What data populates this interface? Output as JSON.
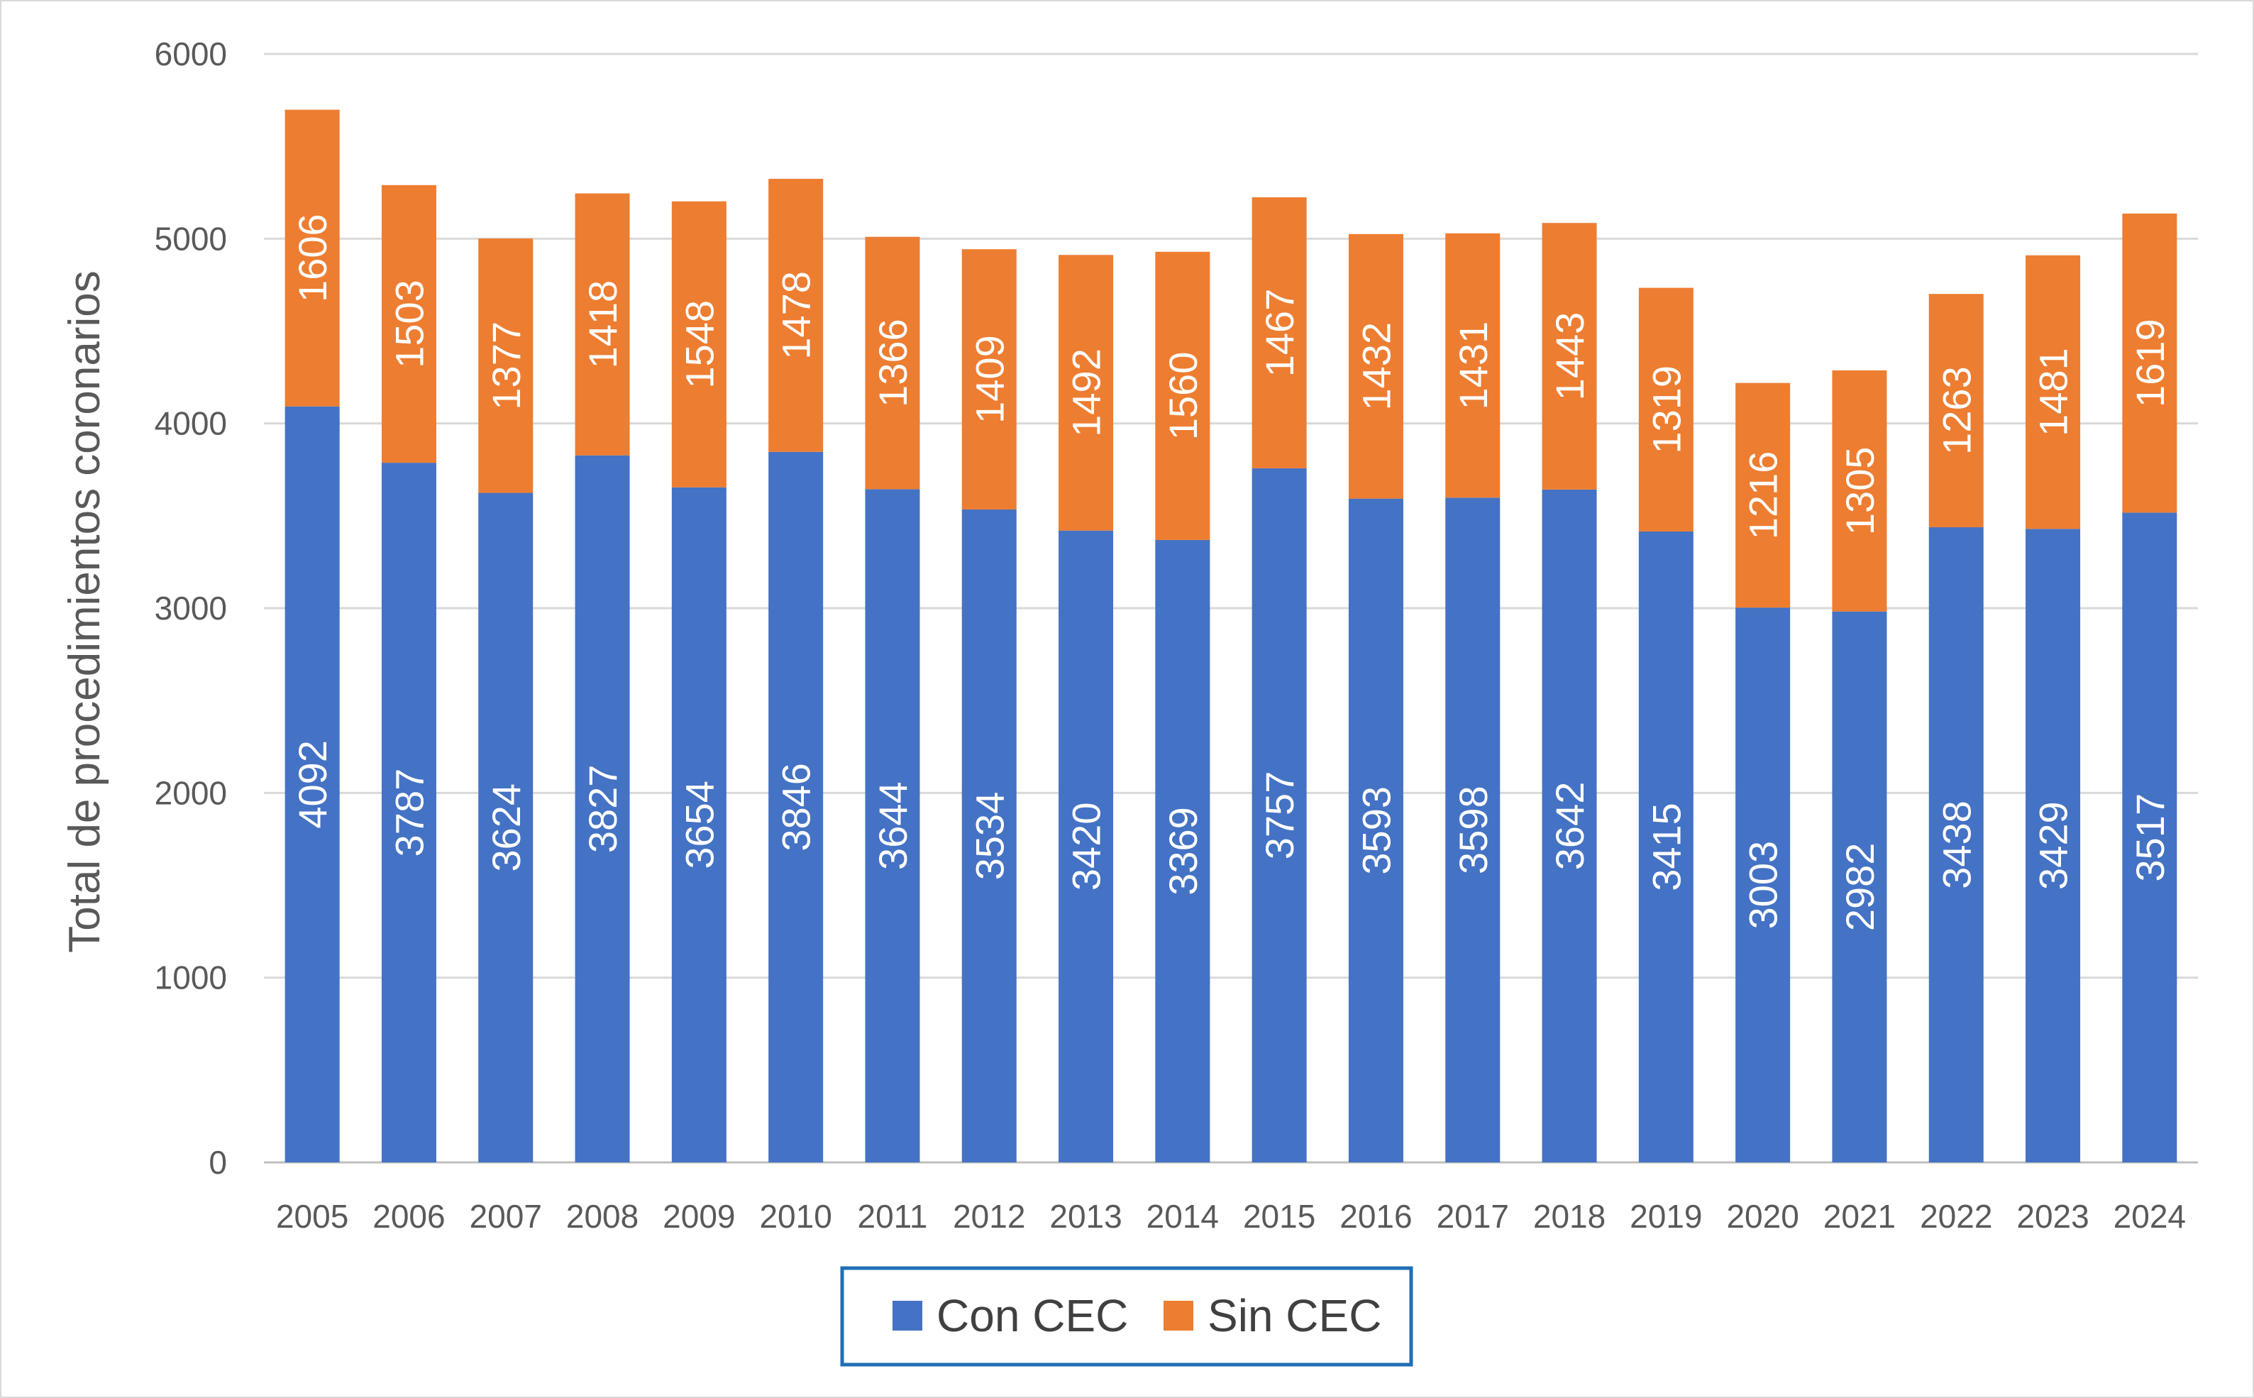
{
  "chart_data": {
    "type": "bar",
    "stacked": true,
    "categories": [
      "2005",
      "2006",
      "2007",
      "2008",
      "2009",
      "2010",
      "2011",
      "2012",
      "2013",
      "2014",
      "2015",
      "2016",
      "2017",
      "2018",
      "2019",
      "2020",
      "2021",
      "2022",
      "2023",
      "2024"
    ],
    "series": [
      {
        "name": "Con CEC",
        "color": "#4472C4",
        "values": [
          4092,
          3787,
          3624,
          3827,
          3654,
          3846,
          3644,
          3534,
          3420,
          3369,
          3757,
          3593,
          3598,
          3642,
          3415,
          3003,
          2982,
          3438,
          3429,
          3517
        ]
      },
      {
        "name": "Sin CEC",
        "color": "#ED7D31",
        "values": [
          1606,
          1503,
          1377,
          1418,
          1548,
          1478,
          1366,
          1409,
          1492,
          1560,
          1467,
          1432,
          1431,
          1443,
          1319,
          1216,
          1305,
          1263,
          1481,
          1619
        ]
      }
    ],
    "ylabel": "Total de procedimientos coronarios",
    "ylim": [
      0,
      6000
    ],
    "yticks": [
      0,
      1000,
      2000,
      3000,
      4000,
      5000,
      6000
    ],
    "grid": true,
    "legend_position": "bottom",
    "data_labels": true
  }
}
